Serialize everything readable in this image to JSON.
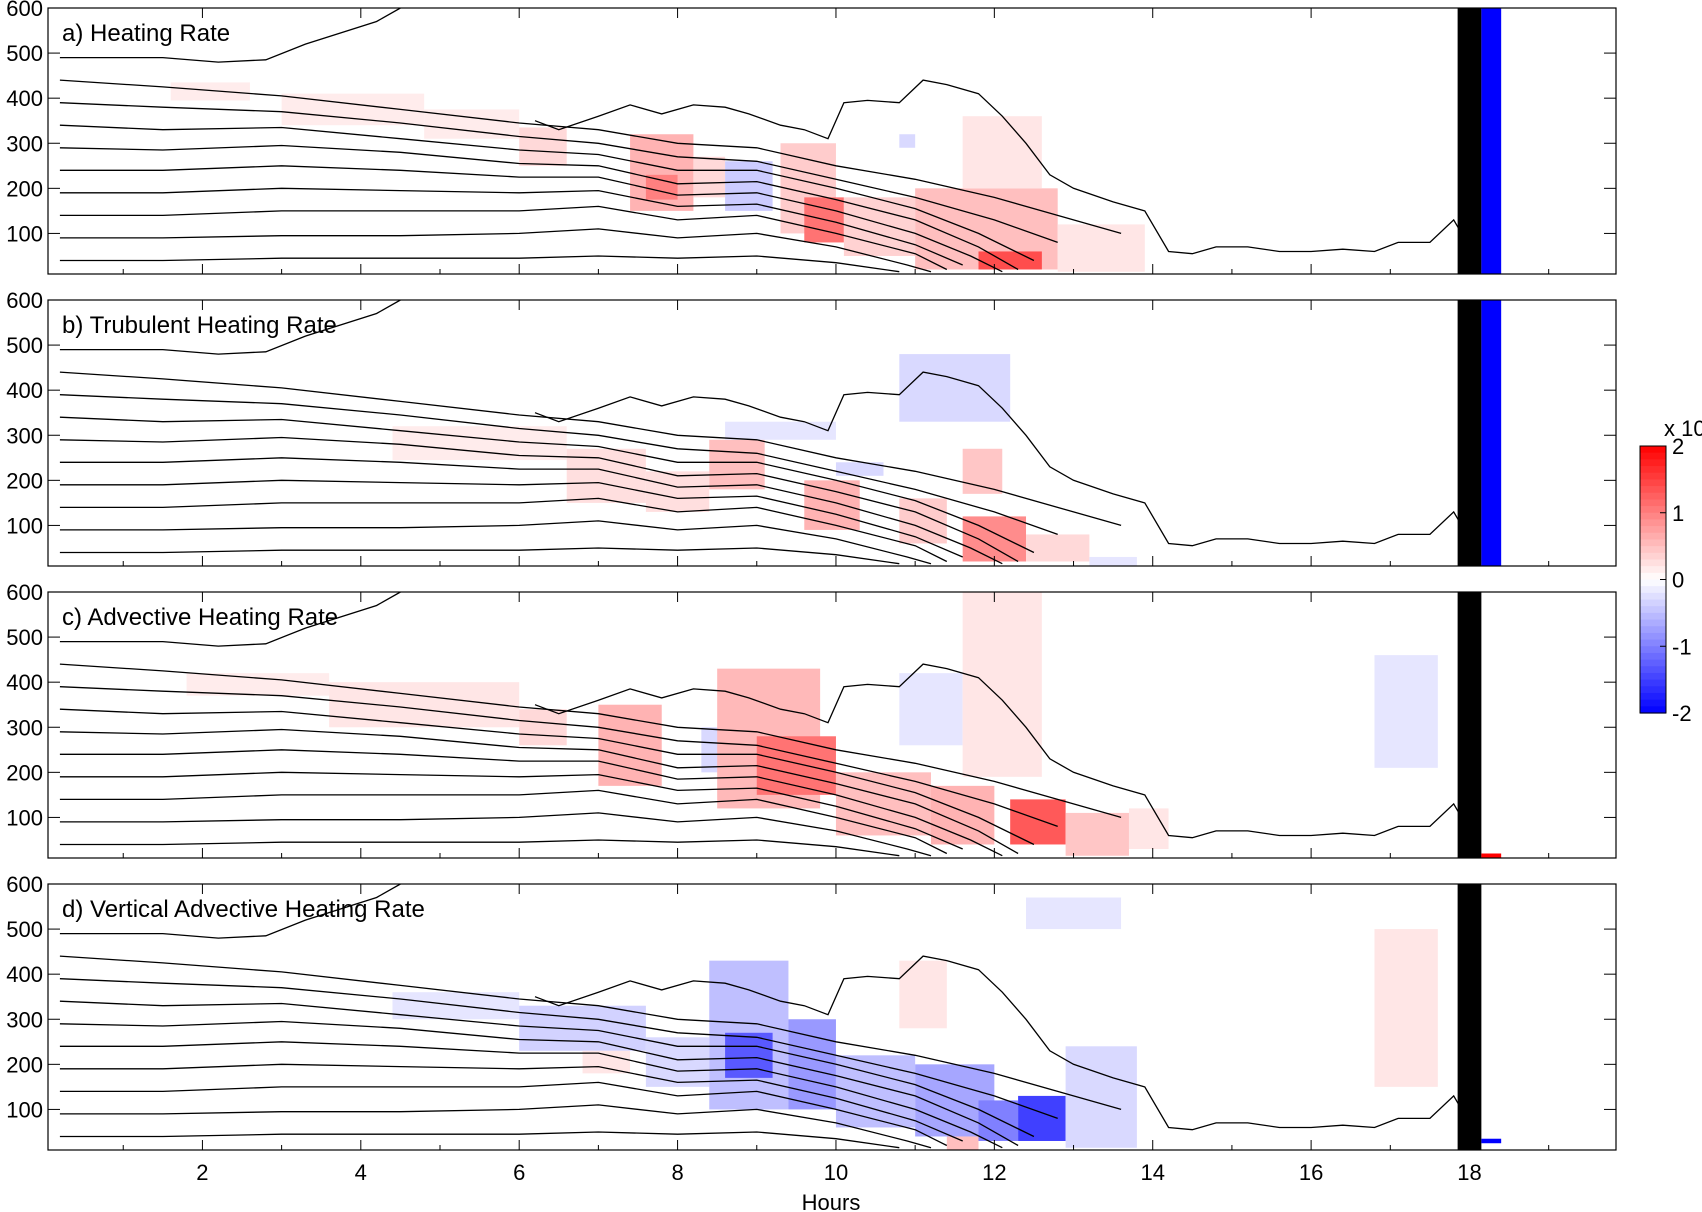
{
  "chart_data": {
    "type": "heatmap",
    "figure": {
      "xlabel": "Hours",
      "xticks": [
        2,
        4,
        6,
        8,
        10,
        12,
        14,
        16,
        18
      ],
      "xlim": [
        0.05,
        19.85
      ],
      "yticks": [
        100,
        200,
        300,
        400,
        500,
        600
      ],
      "ylim": [
        10,
        600
      ],
      "colorbar": {
        "ticks": [
          2,
          1,
          0,
          -1,
          -2
        ],
        "range": [
          -2,
          2
        ],
        "multiplier_label": "x 10",
        "colors": {
          "positive": "#ff0000",
          "negative": "#0000ff",
          "zero": "#ffffff"
        }
      }
    },
    "panels": [
      {
        "title": "a) Heating Rate",
        "bars": [
          {
            "x0": 17.85,
            "x1": 18.15,
            "color": "#000000"
          },
          {
            "x0": 18.15,
            "x1": 18.4,
            "color": "#0000ff"
          }
        ],
        "cells": [
          [
            1.6,
            2.6,
            395,
            435,
            0.15
          ],
          [
            3.0,
            4.8,
            340,
            410,
            0.15
          ],
          [
            4.8,
            6.0,
            310,
            375,
            0.15
          ],
          [
            6.0,
            6.6,
            250,
            335,
            0.3
          ],
          [
            7.4,
            8.2,
            150,
            320,
            0.6
          ],
          [
            7.6,
            8.0,
            175,
            230,
            1.0
          ],
          [
            8.2,
            8.6,
            180,
            270,
            0.3
          ],
          [
            8.6,
            9.2,
            150,
            260,
            -0.4
          ],
          [
            9.3,
            10.0,
            100,
            300,
            0.4
          ],
          [
            9.6,
            10.1,
            80,
            180,
            1.1
          ],
          [
            10.1,
            11.0,
            50,
            180,
            0.35
          ],
          [
            10.8,
            11.0,
            290,
            320,
            -0.3
          ],
          [
            11.0,
            12.8,
            20,
            200,
            0.5
          ],
          [
            11.8,
            12.6,
            20,
            60,
            1.4
          ],
          [
            11.6,
            12.6,
            200,
            360,
            0.2
          ],
          [
            12.8,
            13.9,
            15,
            120,
            0.2
          ]
        ]
      },
      {
        "title": "b) Trubulent Heating Rate",
        "bars": [
          {
            "x0": 17.85,
            "x1": 18.15,
            "color": "#000000"
          },
          {
            "x0": 18.15,
            "x1": 18.4,
            "color": "#0000ff"
          }
        ],
        "cells": [
          [
            4.4,
            6.6,
            245,
            320,
            0.15
          ],
          [
            6.6,
            7.6,
            150,
            270,
            0.25
          ],
          [
            7.6,
            8.4,
            130,
            220,
            0.25
          ],
          [
            8.4,
            9.1,
            180,
            290,
            0.5
          ],
          [
            8.6,
            10.0,
            290,
            330,
            -0.2
          ],
          [
            9.6,
            10.3,
            90,
            200,
            0.6
          ],
          [
            10.0,
            10.6,
            210,
            240,
            -0.3
          ],
          [
            10.8,
            12.2,
            330,
            480,
            -0.3
          ],
          [
            10.8,
            11.4,
            60,
            160,
            0.4
          ],
          [
            11.6,
            12.4,
            20,
            120,
            0.9
          ],
          [
            11.6,
            12.1,
            170,
            270,
            0.45
          ],
          [
            12.4,
            13.2,
            20,
            80,
            0.3
          ],
          [
            13.2,
            13.8,
            10,
            30,
            -0.2
          ]
        ]
      },
      {
        "title": "c) Advective Heating Rate",
        "bars": [
          {
            "x0": 17.85,
            "x1": 18.15,
            "color": "#000000"
          },
          {
            "x0": 18.15,
            "x1": 18.4,
            "color": "#ff0000",
            "y1": 20
          }
        ],
        "cells": [
          [
            1.8,
            3.6,
            370,
            420,
            0.15
          ],
          [
            3.6,
            6.0,
            300,
            400,
            0.2
          ],
          [
            6.0,
            6.6,
            260,
            340,
            0.3
          ],
          [
            7.0,
            7.8,
            170,
            350,
            0.6
          ],
          [
            8.3,
            8.6,
            200,
            300,
            -0.3
          ],
          [
            8.5,
            9.8,
            120,
            430,
            0.55
          ],
          [
            9.0,
            10.0,
            150,
            280,
            1.1
          ],
          [
            10.0,
            11.2,
            60,
            200,
            0.5
          ],
          [
            10.8,
            11.6,
            260,
            420,
            -0.2
          ],
          [
            11.2,
            12.0,
            40,
            170,
            0.6
          ],
          [
            11.6,
            12.6,
            190,
            600,
            0.2
          ],
          [
            12.2,
            12.9,
            40,
            140,
            1.3
          ],
          [
            12.9,
            13.7,
            15,
            110,
            0.45
          ],
          [
            13.7,
            14.2,
            30,
            120,
            0.2
          ],
          [
            16.8,
            17.6,
            210,
            460,
            -0.2
          ]
        ]
      },
      {
        "title": "d) Vertical Advective Heating Rate",
        "bars": [
          {
            "x0": 17.85,
            "x1": 18.15,
            "color": "#000000"
          },
          {
            "x0": 18.15,
            "x1": 18.4,
            "color": "#0000ff",
            "y0": 25,
            "y1": 35
          }
        ],
        "cells": [
          [
            4.4,
            6.0,
            300,
            360,
            -0.2
          ],
          [
            6.0,
            7.6,
            230,
            330,
            -0.35
          ],
          [
            6.8,
            7.4,
            180,
            230,
            0.2
          ],
          [
            7.6,
            8.4,
            150,
            260,
            -0.3
          ],
          [
            8.4,
            9.4,
            100,
            430,
            -0.5
          ],
          [
            8.6,
            9.2,
            170,
            270,
            -1.3
          ],
          [
            9.4,
            10.0,
            100,
            300,
            -0.8
          ],
          [
            10.0,
            11.0,
            60,
            220,
            -0.5
          ],
          [
            10.8,
            11.4,
            280,
            430,
            0.2
          ],
          [
            11.0,
            12.0,
            40,
            200,
            -0.7
          ],
          [
            11.8,
            12.3,
            30,
            120,
            -1.0
          ],
          [
            12.3,
            12.9,
            30,
            130,
            -1.5
          ],
          [
            12.9,
            13.8,
            15,
            240,
            -0.3
          ],
          [
            12.4,
            13.6,
            500,
            570,
            -0.2
          ],
          [
            11.4,
            11.8,
            10,
            40,
            0.5
          ],
          [
            16.8,
            17.6,
            150,
            500,
            0.2
          ]
        ]
      }
    ],
    "contour_lines": [
      [
        [
          0.2,
          440
        ],
        [
          1.5,
          425
        ],
        [
          3,
          405
        ],
        [
          4.5,
          375
        ],
        [
          6,
          345
        ],
        [
          7,
          330
        ],
        [
          8,
          300
        ],
        [
          9,
          290
        ],
        [
          10,
          250
        ],
        [
          11,
          220
        ],
        [
          12,
          180
        ],
        [
          13,
          130
        ],
        [
          13.6,
          100
        ]
      ],
      [
        [
          0.2,
          390
        ],
        [
          1.5,
          380
        ],
        [
          3,
          370
        ],
        [
          4.5,
          345
        ],
        [
          6,
          315
        ],
        [
          7,
          300
        ],
        [
          8,
          270
        ],
        [
          9,
          260
        ],
        [
          10,
          220
        ],
        [
          11,
          180
        ],
        [
          12,
          130
        ],
        [
          12.8,
          80
        ]
      ],
      [
        [
          0.2,
          340
        ],
        [
          1.5,
          330
        ],
        [
          3,
          335
        ],
        [
          4.5,
          310
        ],
        [
          6,
          285
        ],
        [
          7,
          275
        ],
        [
          8,
          240
        ],
        [
          9,
          240
        ],
        [
          10,
          200
        ],
        [
          11,
          155
        ],
        [
          11.8,
          100
        ],
        [
          12.5,
          40
        ]
      ],
      [
        [
          0.2,
          290
        ],
        [
          1.5,
          285
        ],
        [
          3,
          295
        ],
        [
          4.5,
          280
        ],
        [
          6,
          255
        ],
        [
          7,
          250
        ],
        [
          8,
          210
        ],
        [
          9,
          215
        ],
        [
          10,
          175
        ],
        [
          11,
          130
        ],
        [
          11.8,
          70
        ],
        [
          12.3,
          20
        ]
      ],
      [
        [
          0.2,
          240
        ],
        [
          1.5,
          240
        ],
        [
          3,
          250
        ],
        [
          4.5,
          240
        ],
        [
          6,
          225
        ],
        [
          7,
          225
        ],
        [
          8,
          185
        ],
        [
          9,
          190
        ],
        [
          10,
          150
        ],
        [
          11,
          100
        ],
        [
          11.7,
          50
        ],
        [
          12.1,
          15
        ]
      ],
      [
        [
          0.2,
          190
        ],
        [
          1.5,
          190
        ],
        [
          3,
          200
        ],
        [
          4.5,
          195
        ],
        [
          6,
          190
        ],
        [
          7,
          195
        ],
        [
          8,
          160
        ],
        [
          9,
          165
        ],
        [
          10,
          125
        ],
        [
          11,
          75
        ],
        [
          11.6,
          30
        ]
      ],
      [
        [
          0.2,
          140
        ],
        [
          1.5,
          140
        ],
        [
          3,
          150
        ],
        [
          4.5,
          150
        ],
        [
          6,
          150
        ],
        [
          7,
          160
        ],
        [
          8,
          130
        ],
        [
          9,
          140
        ],
        [
          10,
          100
        ],
        [
          11,
          55
        ],
        [
          11.4,
          20
        ]
      ],
      [
        [
          0.2,
          90
        ],
        [
          1.5,
          90
        ],
        [
          3,
          95
        ],
        [
          4.5,
          95
        ],
        [
          6,
          100
        ],
        [
          7,
          110
        ],
        [
          8,
          90
        ],
        [
          9,
          100
        ],
        [
          10,
          70
        ],
        [
          10.9,
          30
        ],
        [
          11.2,
          15
        ]
      ],
      [
        [
          0.2,
          40
        ],
        [
          1.5,
          40
        ],
        [
          3,
          45
        ],
        [
          4.5,
          45
        ],
        [
          6,
          45
        ],
        [
          7,
          50
        ],
        [
          8,
          45
        ],
        [
          9,
          50
        ],
        [
          10,
          35
        ],
        [
          10.8,
          15
        ]
      ]
    ],
    "boundary_line": [
      [
        0.2,
        490
      ],
      [
        1.5,
        490
      ],
      [
        2.2,
        480
      ],
      [
        2.8,
        485
      ],
      [
        3.3,
        520
      ],
      [
        4.2,
        570
      ],
      [
        4.5,
        600
      ]
    ],
    "top_line": [
      [
        6.2,
        350
      ],
      [
        6.5,
        330
      ],
      [
        7.0,
        360
      ],
      [
        7.4,
        385
      ],
      [
        7.8,
        365
      ],
      [
        8.2,
        385
      ],
      [
        8.6,
        380
      ],
      [
        8.9,
        365
      ],
      [
        9.3,
        340
      ],
      [
        9.6,
        330
      ],
      [
        9.9,
        310
      ],
      [
        10.1,
        390
      ],
      [
        10.4,
        395
      ],
      [
        10.8,
        390
      ],
      [
        11.1,
        440
      ],
      [
        11.4,
        430
      ],
      [
        11.8,
        410
      ],
      [
        12.1,
        360
      ],
      [
        12.4,
        300
      ],
      [
        12.7,
        230
      ],
      [
        13.0,
        200
      ],
      [
        13.5,
        170
      ],
      [
        13.9,
        150
      ],
      [
        14.2,
        60
      ],
      [
        14.5,
        55
      ],
      [
        14.8,
        70
      ],
      [
        15.2,
        70
      ],
      [
        15.6,
        60
      ],
      [
        16.0,
        60
      ],
      [
        16.4,
        65
      ],
      [
        16.8,
        60
      ],
      [
        17.1,
        80
      ],
      [
        17.5,
        80
      ],
      [
        17.8,
        130
      ],
      [
        17.9,
        100
      ]
    ]
  }
}
